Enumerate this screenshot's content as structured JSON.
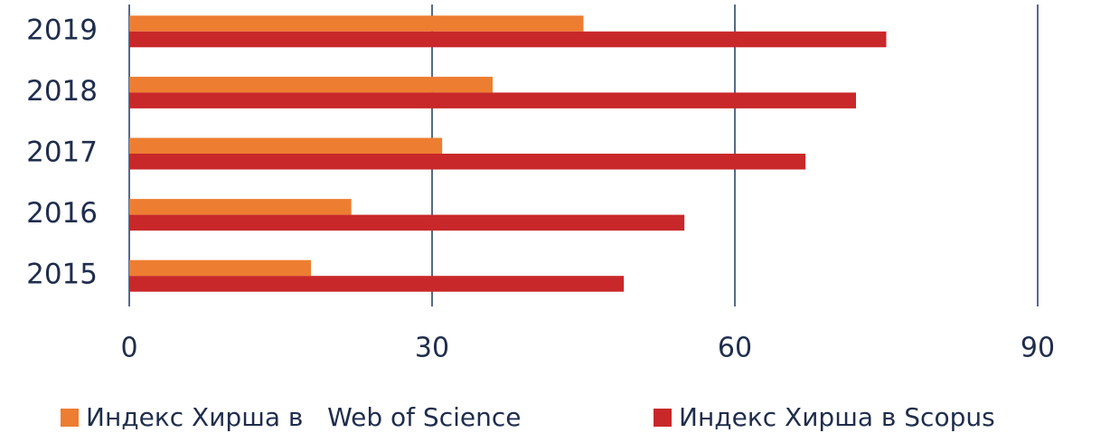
{
  "chart_data": {
    "type": "barh",
    "categories": [
      "2019",
      "2018",
      "2017",
      "2016",
      "2015"
    ],
    "series": [
      {
        "name": "Индекс Хирша в   Web of Science",
        "color": "#ed7d31",
        "values": [
          45,
          36,
          31,
          22,
          18
        ]
      },
      {
        "name": "Индекс Хирша в Scopus",
        "color": "#c8282a",
        "values": [
          75,
          72,
          67,
          55,
          49
        ]
      }
    ],
    "xlim": [
      0,
      90
    ],
    "xticks": [
      0,
      30,
      60,
      90
    ],
    "grid": true,
    "grid_color": "#1f3864",
    "legend": "bottom"
  }
}
